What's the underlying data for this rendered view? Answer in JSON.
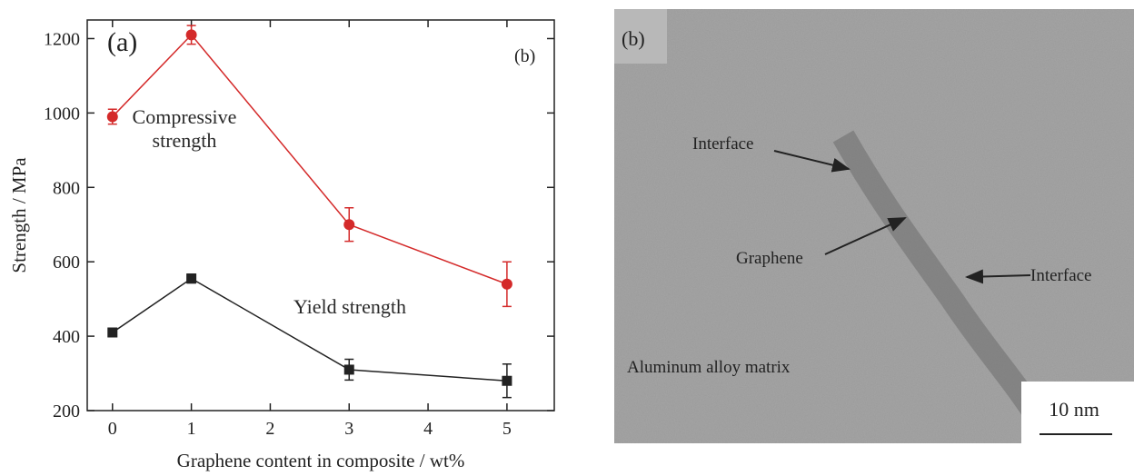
{
  "chart_data": {
    "type": "line",
    "panel_label": "(a)",
    "corner_label": "(b)",
    "x_label": "Graphene content in composite / wt%",
    "y_label": "Strength / MPa",
    "x": [
      0,
      1,
      3,
      5
    ],
    "series": [
      {
        "name": "Compressive strength",
        "color": "#d42a2a",
        "marker": "circle",
        "values": [
          990,
          1210,
          700,
          540
        ],
        "errors": [
          20,
          25,
          45,
          60
        ]
      },
      {
        "name": "Yield strength",
        "color": "#222222",
        "marker": "square",
        "values": [
          410,
          555,
          310,
          280
        ],
        "errors": [
          10,
          12,
          28,
          45
        ]
      }
    ],
    "xlim": [
      -0.32,
      5.6
    ],
    "ylim": [
      200,
      1250
    ],
    "xticks": [
      0,
      1,
      2,
      3,
      4,
      5
    ],
    "yticks": [
      200,
      400,
      600,
      800,
      1000,
      1200
    ]
  },
  "image_panel": {
    "label": "(b)",
    "annotations": [
      "Interface",
      "Graphene",
      "Interface",
      "Aluminum alloy matrix"
    ],
    "scale_bar": "10 nm"
  }
}
